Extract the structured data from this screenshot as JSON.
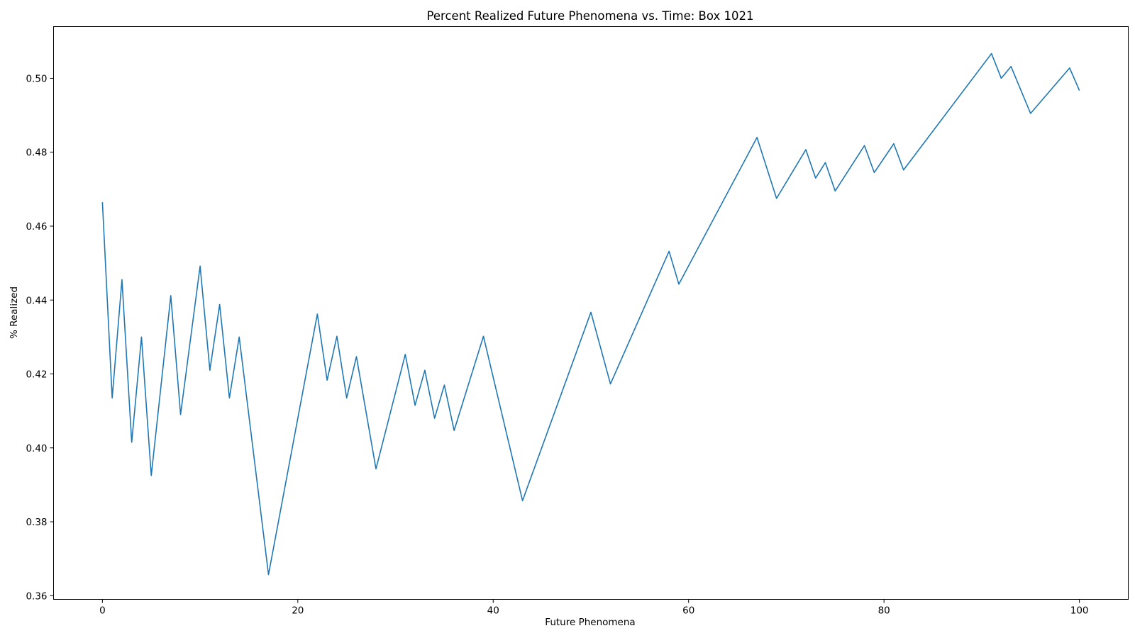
{
  "chart_data": {
    "type": "line",
    "title": "Percent Realized Future Phenomena vs. Time: Box 1021",
    "xlabel": "Future Phenomena",
    "ylabel": "% Realized",
    "xlim": [
      -5,
      105
    ],
    "ylim": [
      0.359,
      0.514
    ],
    "x_ticks": [
      0,
      20,
      40,
      60,
      80,
      100
    ],
    "y_ticks": [
      0.36,
      0.38,
      0.4,
      0.42,
      0.44,
      0.46,
      0.48,
      0.5
    ],
    "x_tick_labels": [
      "0",
      "20",
      "40",
      "60",
      "80",
      "100"
    ],
    "y_tick_labels": [
      "0.36",
      "0.38",
      "0.40",
      "0.42",
      "0.44",
      "0.46",
      "0.48",
      "0.50"
    ],
    "grid": false,
    "line_color": "#1f77b4",
    "series": [
      {
        "x": [
          0,
          1,
          2,
          3,
          4,
          5,
          7,
          8,
          10,
          11,
          12,
          13,
          14,
          17,
          22,
          23,
          24,
          25,
          26,
          28,
          31,
          32,
          33,
          34,
          35,
          36,
          39,
          43,
          50,
          52,
          58,
          59,
          67,
          69,
          72,
          73,
          74,
          75,
          78,
          79,
          81,
          82,
          91,
          92,
          93,
          95,
          99,
          100
        ],
        "values": [
          0.4665,
          0.4135,
          0.4455,
          0.4015,
          0.43,
          0.3925,
          0.4412,
          0.409,
          0.4492,
          0.421,
          0.4388,
          0.4135,
          0.43,
          0.3657,
          0.4362,
          0.4183,
          0.4302,
          0.4135,
          0.4247,
          0.3943,
          0.4253,
          0.4115,
          0.421,
          0.408,
          0.417,
          0.4047,
          0.4302,
          0.3857,
          0.4367,
          0.4173,
          0.4532,
          0.4443,
          0.484,
          0.4675,
          0.4807,
          0.473,
          0.4772,
          0.4695,
          0.4818,
          0.4745,
          0.4823,
          0.4752,
          0.5067,
          0.5,
          0.5032,
          0.4905,
          0.5028,
          0.4967
        ]
      }
    ]
  }
}
